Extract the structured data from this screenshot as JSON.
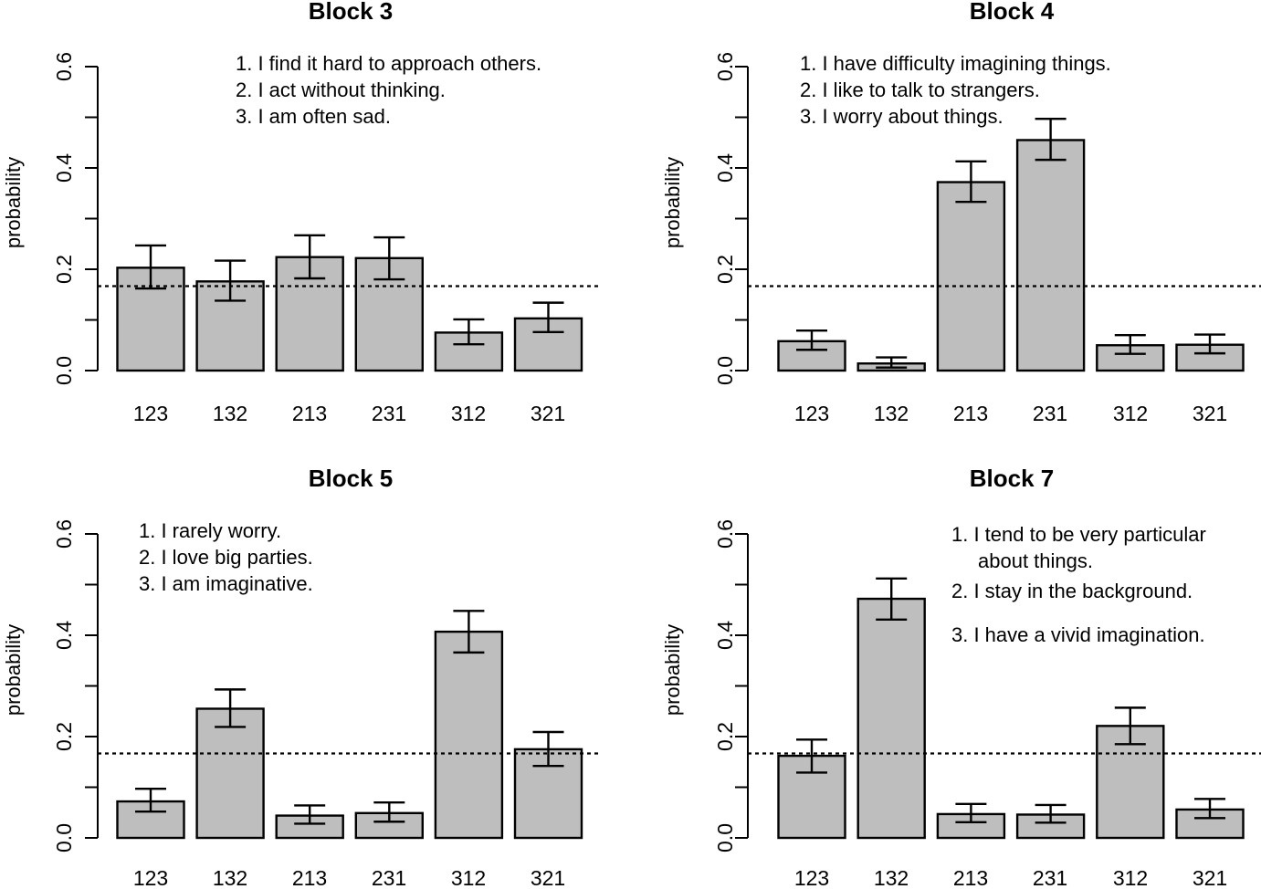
{
  "chart_data": [
    {
      "type": "bar",
      "title": "Block 3",
      "ylabel": "probability",
      "xlabel": "",
      "ylim": [
        0,
        0.6
      ],
      "yticks": [
        "0.0",
        "0.2",
        "0.4",
        "0.6"
      ],
      "categories": [
        "123",
        "132",
        "213",
        "231",
        "312",
        "321"
      ],
      "values": [
        0.203,
        0.176,
        0.224,
        0.222,
        0.075,
        0.103
      ],
      "errors_low": [
        0.162,
        0.138,
        0.182,
        0.18,
        0.052,
        0.076
      ],
      "errors_high": [
        0.247,
        0.217,
        0.267,
        0.263,
        0.101,
        0.134
      ],
      "reference_line": 0.1667,
      "annotations": [
        "1. I find it hard to approach others.",
        "2. I act without thinking.",
        "3. I am often sad."
      ]
    },
    {
      "type": "bar",
      "title": "Block 4",
      "ylabel": "probability",
      "xlabel": "",
      "ylim": [
        0,
        0.6
      ],
      "yticks": [
        "0.0",
        "0.2",
        "0.4",
        "0.6"
      ],
      "categories": [
        "123",
        "132",
        "213",
        "231",
        "312",
        "321"
      ],
      "values": [
        0.058,
        0.014,
        0.372,
        0.455,
        0.05,
        0.051
      ],
      "errors_low": [
        0.041,
        0.006,
        0.333,
        0.416,
        0.033,
        0.034
      ],
      "errors_high": [
        0.079,
        0.026,
        0.413,
        0.497,
        0.07,
        0.071
      ],
      "reference_line": 0.1667,
      "annotations": [
        "1. I have difficulty imagining things.",
        "2. I like to talk to strangers.",
        "3. I worry about things."
      ]
    },
    {
      "type": "bar",
      "title": "Block 5",
      "ylabel": "probability",
      "xlabel": "",
      "ylim": [
        0,
        0.6
      ],
      "yticks": [
        "0.0",
        "0.2",
        "0.4",
        "0.6"
      ],
      "categories": [
        "123",
        "132",
        "213",
        "231",
        "312",
        "321"
      ],
      "values": [
        0.072,
        0.255,
        0.044,
        0.049,
        0.407,
        0.175
      ],
      "errors_low": [
        0.052,
        0.219,
        0.028,
        0.032,
        0.366,
        0.142
      ],
      "errors_high": [
        0.097,
        0.293,
        0.064,
        0.07,
        0.448,
        0.209
      ],
      "reference_line": 0.1667,
      "annotations": [
        "1. I rarely worry.",
        "2. I love big parties.",
        "3. I am imaginative."
      ]
    },
    {
      "type": "bar",
      "title": "Block 7",
      "ylabel": "probability",
      "xlabel": "",
      "ylim": [
        0,
        0.6
      ],
      "yticks": [
        "0.0",
        "0.2",
        "0.4",
        "0.6"
      ],
      "categories": [
        "123",
        "132",
        "213",
        "231",
        "312",
        "321"
      ],
      "values": [
        0.162,
        0.472,
        0.047,
        0.046,
        0.221,
        0.056
      ],
      "errors_low": [
        0.129,
        0.431,
        0.031,
        0.03,
        0.185,
        0.039
      ],
      "errors_high": [
        0.194,
        0.512,
        0.067,
        0.065,
        0.257,
        0.077
      ],
      "reference_line": 0.1667,
      "annotations": [
        "1. I tend to be very particular",
        "about things.",
        "2. I stay in the background.",
        "3. I have a vivid imagination."
      ]
    }
  ]
}
